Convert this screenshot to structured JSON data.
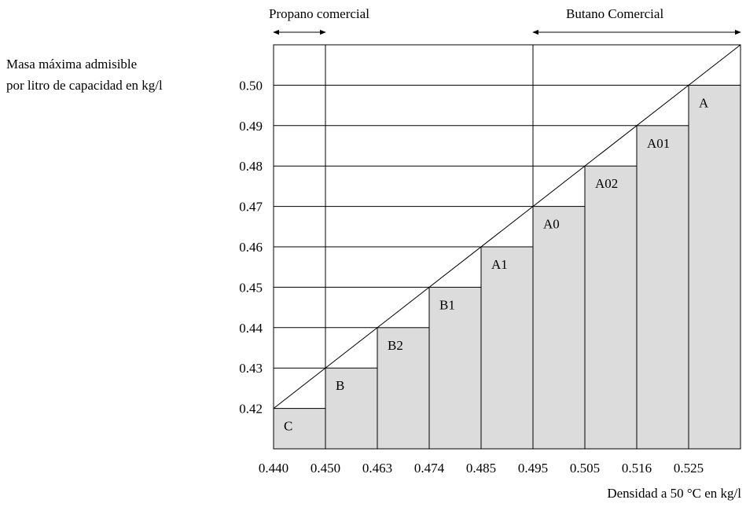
{
  "chart_data": {
    "type": "bar",
    "ylabel_lines": [
      "Masa máxima admisible",
      "por litro de capacidad en kg/l"
    ],
    "xlabel": "Densidad a 50 °C en  kg/l",
    "x_ticks": [
      "0.440",
      "0.450",
      "0.463",
      "0.474",
      "0.485",
      "0.495",
      "0.505",
      "0.516",
      "0.525"
    ],
    "y_ticks": [
      "0.50",
      "0.49",
      "0.48",
      "0.47",
      "0.46",
      "0.45",
      "0.44",
      "0.43",
      "0.42"
    ],
    "y_range": [
      0.41,
      0.51
    ],
    "bars": [
      {
        "label": "C",
        "value": 0.42
      },
      {
        "label": "B",
        "value": 0.43
      },
      {
        "label": "B2",
        "value": 0.44
      },
      {
        "label": "B1",
        "value": 0.45
      },
      {
        "label": "A1",
        "value": 0.46
      },
      {
        "label": "A0",
        "value": 0.47
      },
      {
        "label": "A02",
        "value": 0.48
      },
      {
        "label": "A01",
        "value": 0.49
      },
      {
        "label": "A",
        "value": 0.5
      }
    ],
    "ranges": [
      {
        "label": "Propano comercial",
        "from_tick": 0,
        "to_tick": 1
      },
      {
        "label": "Butano Comercial",
        "from_tick": 5,
        "to_tick": 9
      }
    ],
    "colors": {
      "bar_fill": "#dcdcdc",
      "line": "#000000"
    }
  }
}
